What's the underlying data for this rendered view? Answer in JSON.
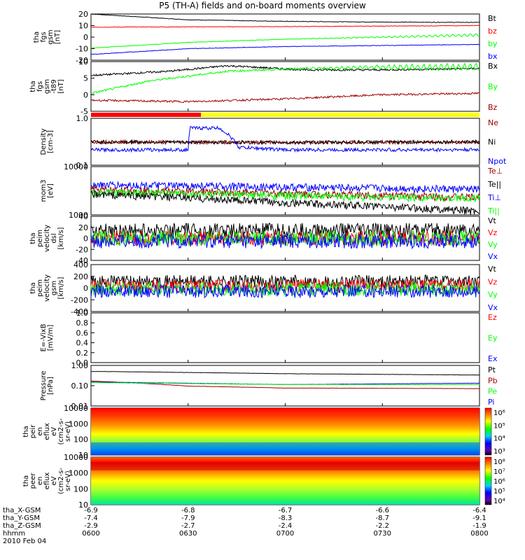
{
  "title": "P5 (TH-A) fields and on-board moments overview",
  "colors": {
    "black": "#000000",
    "red": "#ff0000",
    "green": "#00ff00",
    "blue": "#0000ff",
    "darkred": "#a00000",
    "yellow": "#ffff00"
  },
  "chart_data": {
    "type": "line",
    "x_ticks": [
      "0600",
      "0630",
      "0700",
      "0730",
      "0800"
    ],
    "x_label_rows": [
      {
        "label": "tha_X-GSM",
        "values": [
          "-6.9",
          "-6.8",
          "-6.7",
          "-6.6",
          "-6.4"
        ]
      },
      {
        "label": "tha_Y-GSM",
        "values": [
          "-7.4",
          "-7.9",
          "-8.3",
          "-8.7",
          "-9.1"
        ]
      },
      {
        "label": "tha_Z-GSM",
        "values": [
          "-2.9",
          "-2.7",
          "-2.4",
          "-2.2",
          "-1.9"
        ]
      },
      {
        "label": "hhmm",
        "values": [
          "0600",
          "0630",
          "0700",
          "0730",
          "0800"
        ]
      }
    ],
    "date": "2010 Feb 04",
    "panels": [
      {
        "ylabel": [
          "tha",
          "fgs",
          "gsm",
          "[nT]"
        ],
        "ticks": [
          "20",
          "10",
          "0",
          "-10",
          "-20"
        ],
        "legend": [
          {
            "name": "Bt",
            "color": "black"
          },
          {
            "name": "bz",
            "color": "red"
          },
          {
            "name": "by",
            "color": "green"
          },
          {
            "name": "bx",
            "color": "blue"
          }
        ],
        "series": [
          {
            "name": "Bt",
            "color": "black",
            "values": [
              [
                0,
                22
              ],
              [
                0.25,
                16.5
              ],
              [
                0.5,
                15
              ],
              [
                0.75,
                14.3
              ],
              [
                1,
                14
              ]
            ]
          },
          {
            "name": "bz",
            "color": "red",
            "values": [
              [
                0,
                9.5
              ],
              [
                0.5,
                10
              ],
              [
                1,
                11
              ]
            ]
          },
          {
            "name": "by",
            "color": "green",
            "values": [
              [
                0,
                -10.5
              ],
              [
                0.25,
                -5
              ],
              [
                0.5,
                -2
              ],
              [
                0.75,
                0
              ],
              [
                1,
                2
              ]
            ]
          },
          {
            "name": "bx",
            "color": "blue",
            "values": [
              [
                0,
                -16.5
              ],
              [
                0.25,
                -11
              ],
              [
                0.5,
                -9
              ],
              [
                0.75,
                -8
              ],
              [
                1,
                -7
              ]
            ]
          }
        ]
      },
      {
        "ylabel": [
          "tha",
          "fgs",
          "gsm",
          "-t89",
          "[nT]"
        ],
        "ticks": [
          "10",
          "5",
          "0",
          "-5"
        ],
        "legend": [
          {
            "name": "Bx",
            "color": "black"
          },
          {
            "name": "By",
            "color": "green"
          },
          {
            "name": "Bz",
            "color": "darkred"
          }
        ],
        "series": [
          {
            "name": "Bx",
            "color": "black",
            "values": [
              [
                0,
                6
              ],
              [
                0.2,
                7.5
              ],
              [
                0.35,
                9.5
              ],
              [
                0.55,
                8
              ],
              [
                0.75,
                8
              ],
              [
                1,
                8.5
              ]
            ]
          },
          {
            "name": "By",
            "color": "green",
            "values": [
              [
                0,
                -0.5
              ],
              [
                0.15,
                4
              ],
              [
                0.35,
                7.5
              ],
              [
                0.55,
                8.5
              ],
              [
                0.75,
                9
              ],
              [
                1,
                9
              ]
            ]
          },
          {
            "name": "Bz",
            "color": "darkred",
            "values": [
              [
                0,
                -3
              ],
              [
                0.25,
                -3.5
              ],
              [
                0.5,
                -2.5
              ],
              [
                0.75,
                -1
              ],
              [
                1,
                -0.5
              ]
            ]
          }
        ]
      },
      {
        "ylabel": [
          "Density",
          "[cm-3]"
        ],
        "ticks": [
          "1.0",
          "0.1"
        ],
        "scale": "log",
        "legend": [
          {
            "name": "Ne",
            "color": "darkred"
          },
          {
            "name": "Ni",
            "color": "black"
          },
          {
            "name": "Npot",
            "color": "blue"
          }
        ],
        "series": [
          {
            "name": "Ne",
            "color": "darkred",
            "values": [
              [
                0,
                0.33
              ],
              [
                0.5,
                0.32
              ],
              [
                1,
                0.33
              ]
            ]
          },
          {
            "name": "Ni",
            "color": "black",
            "values": [
              [
                0,
                0.33
              ],
              [
                0.5,
                0.32
              ],
              [
                1,
                0.33
              ]
            ]
          },
          {
            "name": "Npot",
            "color": "blue",
            "values": [
              [
                0,
                0.22
              ],
              [
                0.25,
                0.22
              ],
              [
                0.255,
                0.67
              ],
              [
                0.33,
                0.67
              ],
              [
                0.38,
                0.25
              ],
              [
                0.5,
                0.22
              ],
              [
                1,
                0.22
              ]
            ]
          }
        ]
      },
      {
        "ylabel": [
          "mom3",
          "[eV]"
        ],
        "ticks": [
          "10000",
          "1000"
        ],
        "scale": "log",
        "legend": [
          {
            "name": "Te⊥",
            "color": "darkred"
          },
          {
            "name": "Te||",
            "color": "black"
          },
          {
            "name": "Ti⊥",
            "color": "blue"
          },
          {
            "name": "Ti||",
            "color": "green"
          }
        ],
        "series": [
          {
            "name": "Ti⊥",
            "color": "blue",
            "values": [
              [
                0,
                4200
              ],
              [
                0.5,
                3800
              ],
              [
                1,
                3400
              ]
            ]
          },
          {
            "name": "Te⊥",
            "color": "darkred",
            "values": [
              [
                0,
                3300
              ],
              [
                0.5,
                2800
              ],
              [
                1,
                2300
              ]
            ]
          },
          {
            "name": "Ti||",
            "color": "green",
            "values": [
              [
                0,
                3000
              ],
              [
                0.5,
                2500
              ],
              [
                1,
                2200
              ]
            ]
          },
          {
            "name": "Te||",
            "color": "black",
            "values": [
              [
                0,
                2700
              ],
              [
                0.5,
                1800
              ],
              [
                1,
                1200
              ]
            ]
          }
        ]
      },
      {
        "ylabel": [
          "tha",
          "peim",
          "velocity",
          "dsl",
          "[km/s]"
        ],
        "ticks": [
          "40",
          "20",
          "0",
          "-20",
          "-40"
        ],
        "legend": [
          {
            "name": "Vt",
            "color": "black"
          },
          {
            "name": "Vz",
            "color": "red"
          },
          {
            "name": "Vy",
            "color": "green"
          },
          {
            "name": "Vx",
            "color": "blue"
          }
        ],
        "series": [
          {
            "name": "Vt",
            "color": "black",
            "values": [
              [
                0,
                15
              ],
              [
                1,
                15
              ]
            ]
          },
          {
            "name": "Vz",
            "color": "red",
            "values": [
              [
                0,
                0
              ],
              [
                1,
                0
              ]
            ]
          },
          {
            "name": "Vy",
            "color": "green",
            "values": [
              [
                0,
                0
              ],
              [
                1,
                0
              ]
            ]
          },
          {
            "name": "Vx",
            "color": "blue",
            "values": [
              [
                0,
                -5
              ],
              [
                1,
                -5
              ]
            ]
          }
        ]
      },
      {
        "ylabel": [
          "tha",
          "peim",
          "velocity",
          "gsm",
          "[km/s]"
        ],
        "ticks": [
          "400",
          "200",
          "0",
          "-200",
          "-400"
        ],
        "legend": [
          {
            "name": "Vt",
            "color": "black"
          },
          {
            "name": "Vz",
            "color": "red"
          },
          {
            "name": "Vy",
            "color": "green"
          },
          {
            "name": "Vx",
            "color": "blue"
          }
        ],
        "series": [
          {
            "name": "Vt",
            "color": "black",
            "values": [
              [
                0,
                120
              ],
              [
                1,
                120
              ]
            ]
          },
          {
            "name": "Vz",
            "color": "red",
            "values": [
              [
                0,
                40
              ],
              [
                1,
                40
              ]
            ]
          },
          {
            "name": "Vy",
            "color": "green",
            "values": [
              [
                0,
                -20
              ],
              [
                1,
                -20
              ]
            ]
          },
          {
            "name": "Vx",
            "color": "blue",
            "values": [
              [
                0,
                -60
              ],
              [
                1,
                -60
              ]
            ]
          }
        ]
      },
      {
        "ylabel": [
          "E=-VixB",
          "[mV/m]"
        ],
        "ticks": [
          "1.0",
          "0.8",
          "0.6",
          "0.4",
          "0.2",
          "0.0"
        ],
        "legend": [
          {
            "name": "Ez",
            "color": "red"
          },
          {
            "name": "Ey",
            "color": "green"
          },
          {
            "name": "Ex",
            "color": "blue"
          }
        ],
        "series": []
      },
      {
        "ylabel": [
          "Pressure",
          "[nPa]"
        ],
        "ticks": [
          "1.00",
          "0.10",
          "0.01"
        ],
        "scale": "log",
        "legend": [
          {
            "name": "Pt",
            "color": "black"
          },
          {
            "name": "Pb",
            "color": "darkred"
          },
          {
            "name": "Pe",
            "color": "green"
          },
          {
            "name": "Pi",
            "color": "blue"
          }
        ],
        "series": [
          {
            "name": "Pt",
            "color": "black",
            "values": [
              [
                0,
                0.55
              ],
              [
                0.5,
                0.42
              ],
              [
                1,
                0.36
              ]
            ]
          },
          {
            "name": "Pb",
            "color": "darkred",
            "values": [
              [
                0,
                0.18
              ],
              [
                0.25,
                0.1
              ],
              [
                0.5,
                0.08
              ],
              [
                1,
                0.075
              ]
            ]
          },
          {
            "name": "Pi",
            "color": "blue",
            "values": [
              [
                0,
                0.16
              ],
              [
                0.5,
                0.12
              ],
              [
                1,
                0.14
              ]
            ]
          },
          {
            "name": "Pe",
            "color": "green",
            "values": [
              [
                0,
                0.15
              ],
              [
                0.5,
                0.12
              ],
              [
                1,
                0.12
              ]
            ]
          }
        ]
      },
      {
        "ylabel": [
          "tha",
          "peir",
          "en",
          "eflux",
          "eV",
          "(cm2-s-",
          "sr-eV)"
        ],
        "ticks": [
          "10000",
          "1000",
          "100",
          "10"
        ],
        "colorbar": [
          "10⁶",
          "10⁵",
          "10⁴",
          "10³"
        ],
        "type": "spectrogram"
      },
      {
        "ylabel": [
          "tha",
          "peer",
          "en",
          "eflux",
          "eV",
          "(cm2-s-",
          "sr-eV)"
        ],
        "ticks": [
          "10000",
          "1000",
          "100",
          "10"
        ],
        "colorbar": [
          "10⁸",
          "10⁷",
          "10⁶",
          "10⁵",
          "10⁴"
        ],
        "type": "spectrogram"
      }
    ]
  }
}
